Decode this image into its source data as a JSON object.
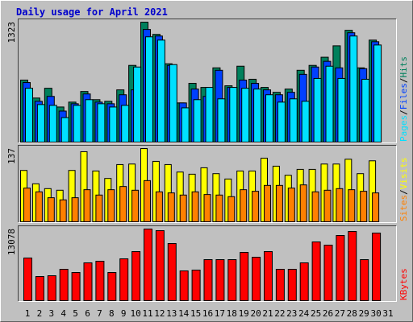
{
  "chart_data": [
    {
      "type": "bar",
      "title": "Daily usage for April 2021",
      "categories": [
        "1",
        "2",
        "3",
        "4",
        "5",
        "6",
        "7",
        "8",
        "9",
        "10",
        "11",
        "12",
        "13",
        "14",
        "15",
        "16",
        "17",
        "18",
        "19",
        "20",
        "21",
        "22",
        "23",
        "24",
        "25",
        "26",
        "27",
        "28",
        "29",
        "30",
        "31"
      ],
      "category_colors": [
        "#000000",
        "#000000",
        "#00805c",
        "#00805c",
        "#000000",
        "#000000",
        "#000000",
        "#000000",
        "#000000",
        "#00805c",
        "#00805c",
        "#000000",
        "#000000",
        "#000000",
        "#000000",
        "#000000",
        "#00805c",
        "#00805c",
        "#000000",
        "#000000",
        "#000000",
        "#000000",
        "#000000",
        "#00805c",
        "#00805c",
        "#000000",
        "#000000",
        "#000000",
        "#000000",
        "#000000",
        "#00805c"
      ],
      "legend_separator": "/",
      "ylim": [
        0,
        1323
      ],
      "yticks": [
        1323
      ],
      "series": [
        {
          "name": "Hits",
          "color": "#00805c",
          "values": [
            684,
            486,
            594,
            387,
            441,
            558,
            468,
            450,
            576,
            846,
            1323,
            1188,
            864,
            432,
            648,
            603,
            819,
            621,
            837,
            693,
            603,
            549,
            585,
            792,
            846,
            936,
            1062,
            1233,
            819,
            1125,
            null
          ]
        },
        {
          "name": "Files",
          "color": "#0040ff",
          "values": [
            657,
            450,
            504,
            342,
            423,
            531,
            441,
            423,
            522,
            576,
            1242,
            1170,
            846,
            432,
            585,
            504,
            792,
            603,
            684,
            648,
            576,
            522,
            549,
            747,
            828,
            891,
            819,
            1206,
            810,
            1107,
            null
          ]
        },
        {
          "name": "Pages",
          "color": "#00e0ff",
          "values": [
            594,
            414,
            405,
            270,
            405,
            468,
            423,
            387,
            405,
            828,
            1161,
            1125,
            855,
            378,
            468,
            603,
            477,
            603,
            594,
            585,
            522,
            441,
            477,
            450,
            702,
            837,
            702,
            1170,
            693,
            1071,
            null
          ]
        }
      ]
    },
    {
      "type": "bar",
      "ylim": [
        0,
        137
      ],
      "yticks": [
        137
      ],
      "series": [
        {
          "name": "Visits",
          "color": "#ffff00",
          "values": [
            96,
            71,
            62,
            59,
            96,
            131,
            95,
            81,
            107,
            108,
            137,
            113,
            107,
            93,
            89,
            101,
            90,
            80,
            95,
            95,
            119,
            104,
            87,
            98,
            98,
            108,
            108,
            117,
            90,
            114,
            null
          ]
        },
        {
          "name": "Sites",
          "color": "#ff8000",
          "values": [
            63,
            56,
            45,
            41,
            45,
            60,
            50,
            60,
            66,
            59,
            77,
            56,
            54,
            50,
            56,
            51,
            50,
            47,
            60,
            57,
            68,
            68,
            63,
            69,
            56,
            59,
            62,
            60,
            57,
            54,
            null
          ]
        }
      ]
    },
    {
      "type": "bar",
      "ylim": [
        0,
        13078
      ],
      "yticks": [
        13078
      ],
      "series": [
        {
          "name": "KBytes",
          "color": "#ff0000",
          "values": [
            7786,
            4407,
            4554,
            5729,
            5142,
            6904,
            7198,
            5142,
            7639,
            8961,
            13078,
            12780,
            10430,
            5435,
            5582,
            7492,
            7492,
            7492,
            8814,
            7933,
            8961,
            5729,
            5729,
            6904,
            10724,
            10136,
            11899,
            12633,
            7492,
            12339,
            null
          ]
        }
      ]
    }
  ]
}
